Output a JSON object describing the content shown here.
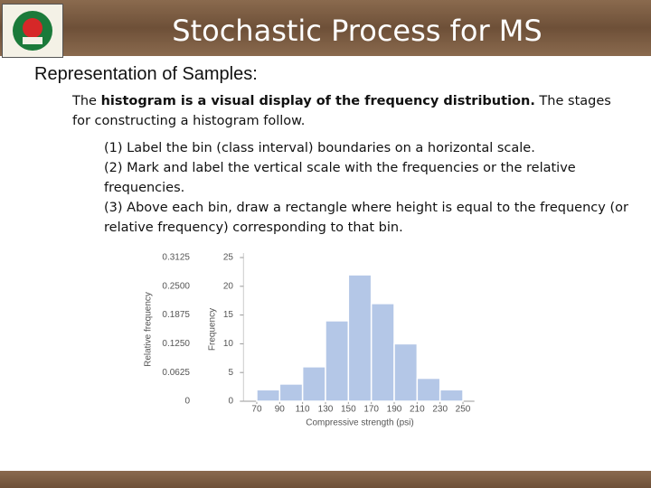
{
  "header": {
    "title": "Stochastic Process for MS"
  },
  "heading": "Representation of Samples:",
  "paragraph": {
    "parts": [
      "The ",
      "histogram is a visual display of the frequency distribution.",
      " The stages for constructing a histogram follow."
    ]
  },
  "steps": [
    "(1) Label the bin (class interval) boundaries on a horizontal scale.",
    "(2) Mark and label the vertical scale with the frequencies or the relative frequencies.",
    "(3) Above each bin, draw a rectangle where height is equal to the frequency (or relative frequency) corresponding to that bin."
  ],
  "chart_data": {
    "type": "histogram",
    "bins": [
      70,
      90,
      110,
      130,
      150,
      170,
      190,
      210,
      230,
      250
    ],
    "values": [
      2,
      3,
      6,
      14,
      22,
      17,
      10,
      4,
      2
    ],
    "color": "#b4c7e7",
    "xlim": [
      60,
      260
    ],
    "xticks": [
      70,
      90,
      110,
      130,
      150,
      170,
      190,
      210,
      230,
      250
    ],
    "ylim": [
      0,
      25
    ],
    "yticks": [
      0,
      5,
      10,
      15,
      20,
      25
    ],
    "y2lim": [
      0,
      0.3125
    ],
    "y2ticks": [
      0,
      0.0625,
      {
        "value": 0.125,
        "label": "0.1250"
      },
      0.1875,
      {
        "value": 0.25,
        "label": "0.2500"
      },
      0.3125
    ],
    "xlabel": "Compressive strength (psi)",
    "ylabel": "Frequency",
    "y2label": "Relative frequency"
  }
}
